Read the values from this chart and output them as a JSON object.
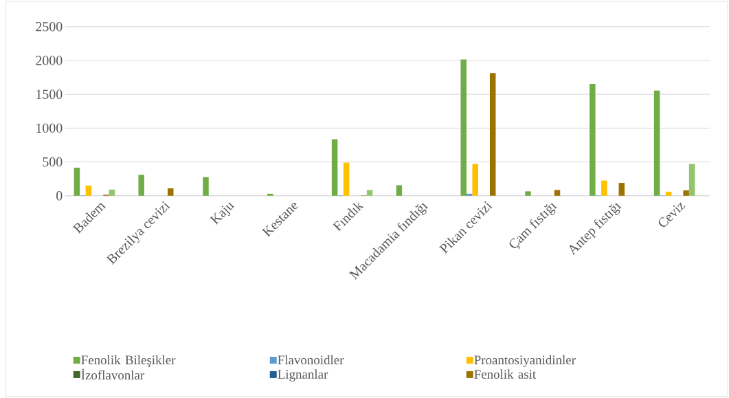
{
  "chart_data": {
    "type": "bar",
    "categories": [
      "Badem",
      "Brezilya cevizi",
      "Kaju",
      "Kestane",
      "Fındık",
      "Macadamia fındığı",
      "Pikan cevizi",
      "Çam fıstığı",
      "Antep fıstığı",
      "Ceviz"
    ],
    "series": [
      {
        "name": "Fenolik Bileşikler",
        "color": "#70ad47",
        "values": [
          415,
          310,
          275,
          30,
          835,
          155,
          2015,
          65,
          1655,
          1555
        ]
      },
      {
        "name": "Flavonoidler",
        "color": "#5b9bd5",
        "values": [
          5,
          0,
          0,
          0,
          5,
          0,
          30,
          0,
          5,
          5
        ]
      },
      {
        "name": "Proantosiyanidinler",
        "color": "#ffc000",
        "values": [
          150,
          0,
          0,
          0,
          490,
          0,
          470,
          0,
          225,
          60
        ]
      },
      {
        "name": "İzoflavonlar",
        "color": "#43682b",
        "values": [
          0,
          0,
          0,
          0,
          0,
          0,
          0,
          0,
          0,
          0
        ]
      },
      {
        "name": "Lignanlar",
        "color": "#255e91",
        "values": [
          0,
          0,
          0,
          0,
          0,
          0,
          0,
          0,
          0,
          0
        ]
      },
      {
        "name": "Fenolik asit",
        "color": "#9e7200",
        "values": [
          15,
          110,
          0,
          0,
          5,
          0,
          1815,
          85,
          190,
          80
        ]
      },
      {
        "color": "#92c46d",
        "values": [
          90,
          0,
          0,
          0,
          85,
          0,
          0,
          0,
          0,
          470
        ]
      },
      {
        "color": "#a9c6e8",
        "values": [
          3,
          0,
          0,
          0,
          0,
          0,
          0,
          0,
          0,
          0
        ]
      }
    ],
    "ylim": [
      0,
      2500
    ],
    "yticks": [
      0,
      500,
      1000,
      1500,
      2000,
      2500
    ],
    "grid": "y",
    "legend": "bottom"
  }
}
